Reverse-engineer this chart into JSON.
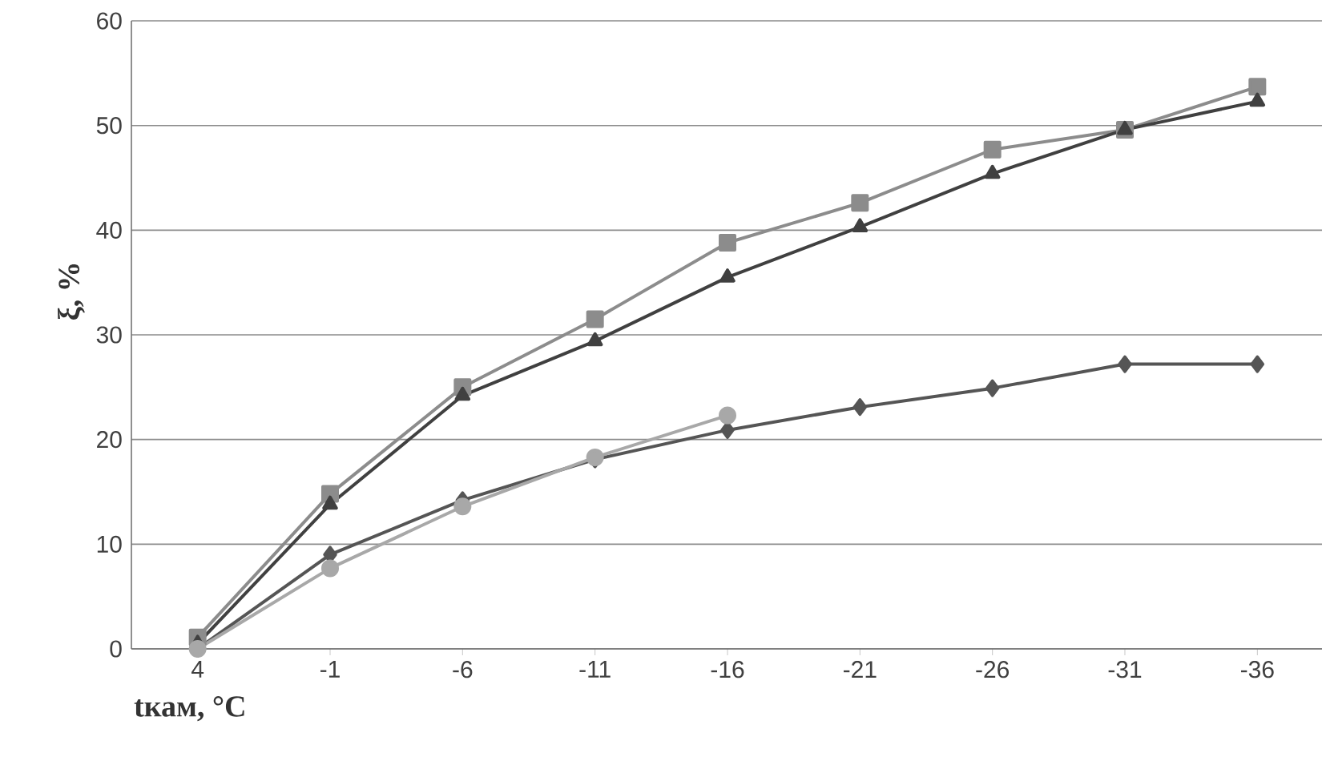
{
  "chart_data": {
    "type": "line",
    "xlabel": "tкам, °C",
    "ylabel": "ξ, %",
    "categories": [
      "4",
      "-1",
      "-6",
      "-11",
      "-16",
      "-21",
      "-26",
      "-31",
      "-36"
    ],
    "ylim": [
      0,
      60
    ],
    "yticks": [
      0,
      10,
      20,
      30,
      40,
      50,
      60
    ],
    "grid": "y",
    "line_style": "solid",
    "series": [
      {
        "color": "#8c8c8c",
        "marker": "square",
        "values": [
          1.1,
          14.8,
          25,
          31.5,
          38.8,
          42.6,
          47.7,
          49.6,
          53.7
        ]
      },
      {
        "color": "#404040",
        "marker": "triangle",
        "values": [
          0.5,
          13.8,
          24.2,
          29.4,
          35.5,
          40.3,
          45.4,
          49.6,
          52.3
        ]
      },
      {
        "color": "#555555",
        "marker": "diamond",
        "values": [
          0,
          9,
          14.2,
          18.1,
          20.9,
          23.1,
          24.9,
          27.2,
          27.2
        ]
      },
      {
        "color": "#a8a8a8",
        "marker": "circle",
        "values": [
          0,
          7.7,
          13.6,
          18.3,
          22.3,
          null,
          null,
          null,
          null
        ]
      }
    ]
  }
}
